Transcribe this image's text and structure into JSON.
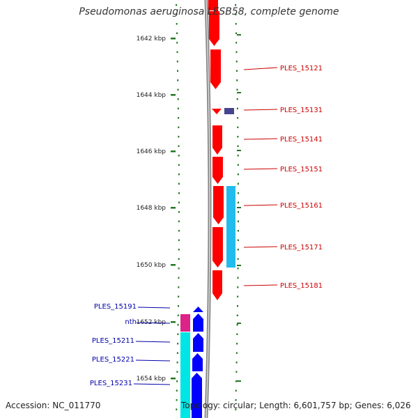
{
  "title": "Pseudomonas aeruginosa LESB58, complete genome",
  "footer": {
    "accession": "Accession: NC_011770",
    "topology": "Topology: circular; Length: 6,601,757 bp; Genes: 6,026"
  },
  "ticks": [
    "1642 kbp",
    "1644 kbp",
    "1646 kbp",
    "1648 kbp",
    "1650 kbp",
    "1652 kbp",
    "1654 kbp"
  ],
  "genes_right": [
    "PLES_15121",
    "PLES_15131",
    "PLES_15141",
    "PLES_15151",
    "PLES_15161",
    "PLES_15171",
    "PLES_15181"
  ],
  "genes_left": [
    "PLES_15191",
    "nth",
    "PLES_15211",
    "PLES_15221",
    "PLES_15231"
  ],
  "colors": {
    "right_label": "#cc0000",
    "left_label": "#0000aa",
    "cds_red": "#ff0000",
    "cds_blue": "#0000ff",
    "feature_cyan": "#00e5e5",
    "feature_lightblue": "#22bbee",
    "feature_magenta": "#dd2288",
    "feature_navy": "#44448f",
    "backbone": "#888888",
    "tick_green": "#227722"
  }
}
